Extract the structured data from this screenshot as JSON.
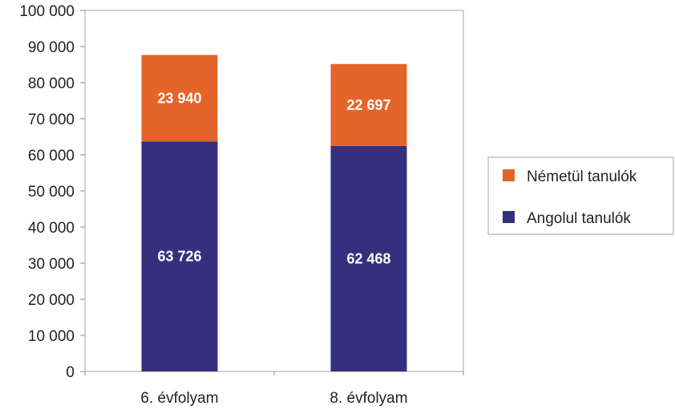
{
  "chart_data": {
    "type": "bar",
    "stacked": true,
    "categories": [
      "6. évfolyam",
      "8. évfolyam"
    ],
    "series": [
      {
        "name": "Angolul tanulók",
        "values": [
          63726,
          62468
        ],
        "labels": [
          "63 726",
          "62 468"
        ],
        "color": "#35307e"
      },
      {
        "name": "Németül tanulók",
        "values": [
          23940,
          22697
        ],
        "labels": [
          "23 940",
          "22 697"
        ],
        "color": "#e5642a"
      }
    ],
    "ylim": [
      0,
      100000
    ],
    "yticks": [
      0,
      10000,
      20000,
      30000,
      40000,
      50000,
      60000,
      70000,
      80000,
      90000,
      100000
    ],
    "ytick_labels": [
      "0",
      "10 000",
      "20 000",
      "30 000",
      "40 000",
      "50 000",
      "60 000",
      "70 000",
      "80 000",
      "90 000",
      "100 000"
    ],
    "grid": false,
    "legend": {
      "position": "right",
      "entries": [
        {
          "label": "Németül tanulók",
          "color": "#e5642a"
        },
        {
          "label": "Angolul tanulók",
          "color": "#35307e"
        }
      ]
    },
    "title": "",
    "xlabel": "",
    "ylabel": ""
  }
}
